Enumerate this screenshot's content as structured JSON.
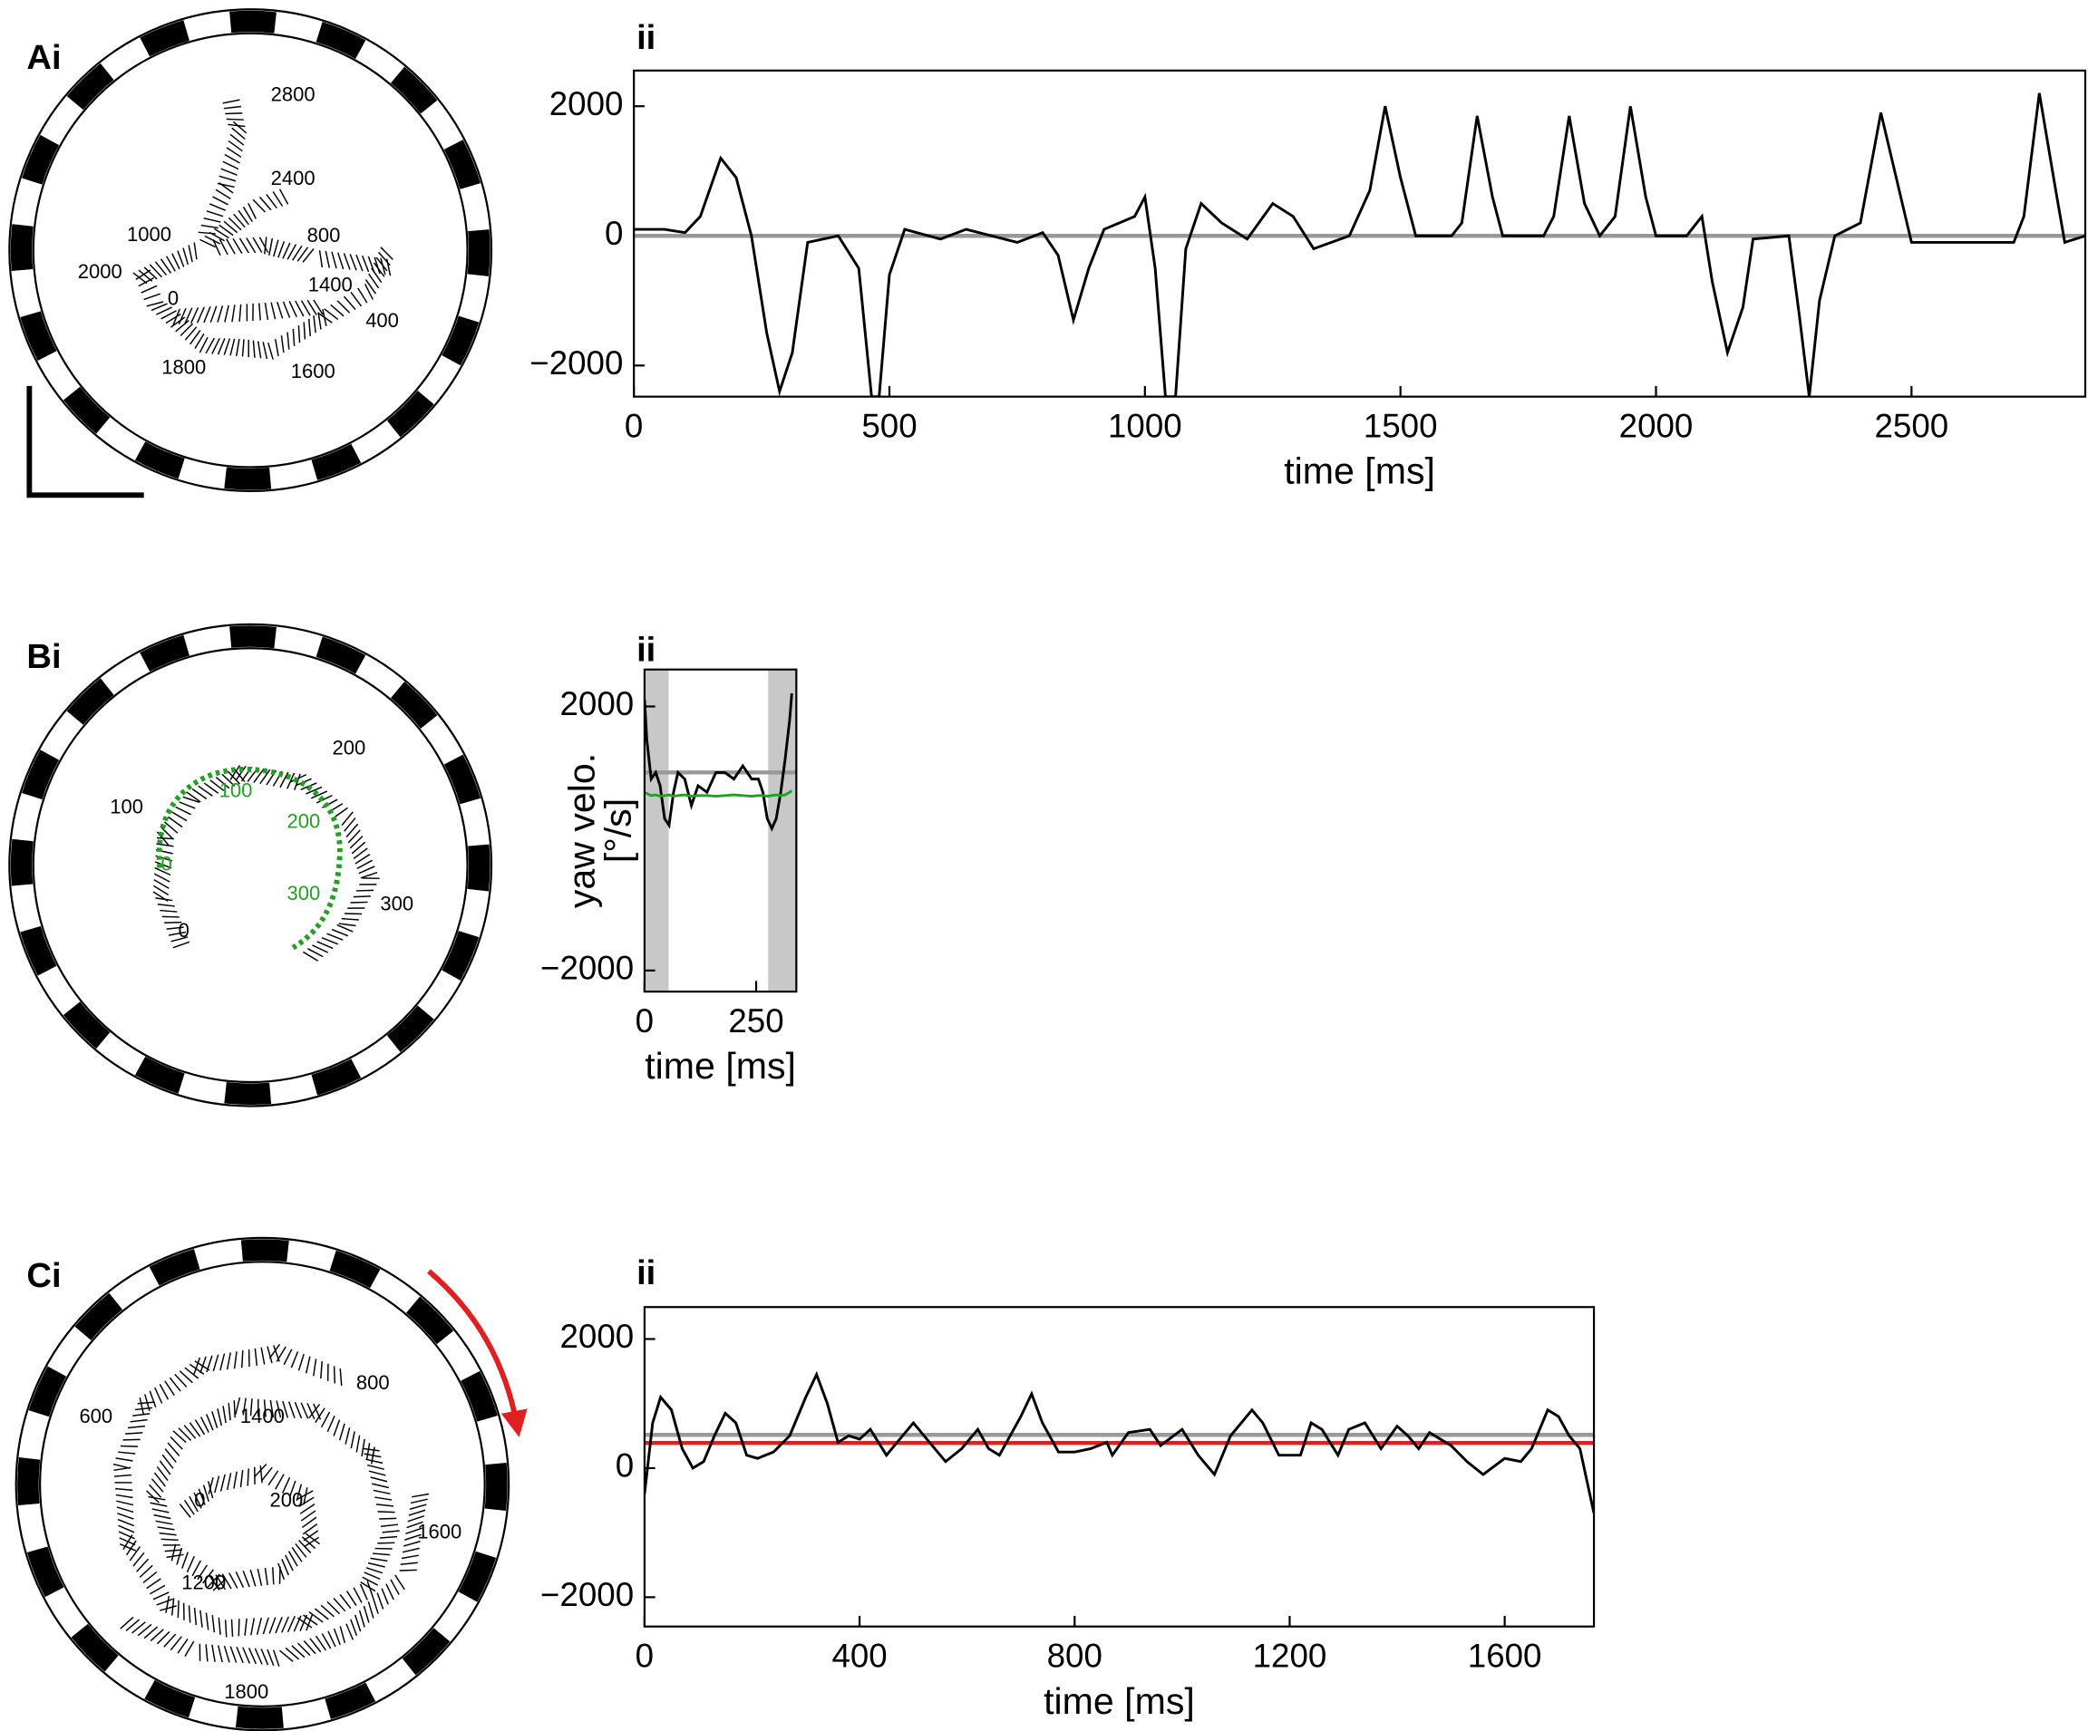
{
  "chart_data": [
    {
      "type": "arena",
      "panel_label": "Ai",
      "label_sets": [
        {
          "color": "#000000",
          "labels": [
            2800,
            2400,
            1000,
            800,
            2000,
            0,
            1400,
            400,
            1800,
            1600
          ]
        }
      ]
    },
    {
      "type": "line",
      "panel_label": "ii",
      "xlabel": "time [ms]",
      "xlim": [
        0,
        2840
      ],
      "ylim": [
        -2480,
        2550
      ],
      "xticks": [
        0,
        500,
        1000,
        1500,
        2000,
        2500
      ],
      "yticks": [
        {
          "value": -2000,
          "label": "−2000"
        },
        0,
        2000
      ],
      "reference_lines": [
        {
          "value": 0,
          "color": "#999999"
        }
      ],
      "x": [
        0,
        60,
        100,
        130,
        170,
        200,
        230,
        260,
        285,
        310,
        340,
        400,
        440,
        465,
        480,
        500,
        530,
        600,
        650,
        700,
        750,
        800,
        830,
        860,
        890,
        920,
        980,
        1000,
        1020,
        1040,
        1060,
        1080,
        1110,
        1150,
        1200,
        1250,
        1290,
        1330,
        1400,
        1440,
        1470,
        1500,
        1530,
        1600,
        1620,
        1650,
        1680,
        1700,
        1780,
        1800,
        1830,
        1860,
        1890,
        1920,
        1950,
        1980,
        2000,
        2060,
        2090,
        2110,
        2140,
        2170,
        2190,
        2260,
        2280,
        2300,
        2320,
        2350,
        2400,
        2440,
        2470,
        2500,
        2600,
        2700,
        2720,
        2750,
        2780,
        2800,
        2840
      ],
      "series": [
        {
          "color": "#000000",
          "values": [
            100,
            100,
            50,
            300,
            1200,
            900,
            0,
            -1500,
            -2400,
            -1800,
            -100,
            0,
            -500,
            -2480,
            -2480,
            -600,
            100,
            -50,
            100,
            0,
            -100,
            50,
            -300,
            -1300,
            -500,
            100,
            300,
            600,
            -500,
            -2480,
            -2480,
            -200,
            500,
            200,
            -50,
            500,
            300,
            -200,
            0,
            700,
            2000,
            900,
            0,
            0,
            200,
            1850,
            600,
            0,
            0,
            300,
            1850,
            500,
            0,
            300,
            2000,
            600,
            0,
            0,
            300,
            -700,
            -1800,
            -1100,
            -50,
            0,
            -1200,
            -2480,
            -1000,
            0,
            200,
            1900,
            900,
            -100,
            -100,
            -100,
            300,
            2200,
            800,
            -100,
            0
          ]
        }
      ]
    },
    {
      "type": "arena",
      "panel_label": "Bi",
      "label_sets": [
        {
          "color": "#000000",
          "labels": [
            200,
            100,
            300,
            0
          ]
        },
        {
          "color": "#22a022",
          "labels": [
            100,
            200,
            0,
            300
          ]
        }
      ]
    },
    {
      "type": "line",
      "panel_label": "ii",
      "xlabel": "time [ms]",
      "ylabel": [
        "yaw velo.",
        "[°/s]"
      ],
      "xlim": [
        0,
        340
      ],
      "ylim": [
        -2320,
        2560
      ],
      "xticks": [
        0,
        250
      ],
      "yticks": [
        {
          "value": -2000,
          "label": "−2000"
        },
        2000
      ],
      "shaded": [
        [
          0,
          54
        ],
        [
          277,
          340
        ]
      ],
      "shade_color": "#c8c8c8",
      "reference_lines": [
        {
          "value": 1000,
          "color": "#999999"
        }
      ],
      "x": [
        0,
        5,
        15,
        25,
        35,
        45,
        55,
        65,
        75,
        90,
        105,
        120,
        140,
        160,
        180,
        200,
        220,
        240,
        255,
        265,
        275,
        285,
        295,
        305,
        315,
        325,
        330
      ],
      "series": [
        {
          "color": "#000000",
          "values": [
            2100,
            1500,
            900,
            1000,
            800,
            300,
            200,
            700,
            1000,
            900,
            500,
            800,
            700,
            1000,
            1000,
            900,
            1100,
            900,
            900,
            700,
            300,
            150,
            300,
            700,
            1200,
            1800,
            2200
          ]
        },
        {
          "color": "#22a022",
          "values": [
            700,
            680,
            650,
            660,
            640,
            650,
            660,
            640,
            650,
            660,
            640,
            650,
            650,
            640,
            650,
            660,
            650,
            640,
            650,
            650,
            640,
            650,
            660,
            650,
            660,
            700,
            720
          ]
        }
      ]
    },
    {
      "type": "arena",
      "panel_label": "Ci",
      "arrow_color": "#e02020",
      "label_sets": [
        {
          "color": "#000000",
          "labels": [
            800,
            600,
            1400,
            0,
            200,
            1600,
            1200,
            1800
          ]
        }
      ]
    },
    {
      "type": "line",
      "panel_label": "ii",
      "xlabel": "time [ms]",
      "xlim": [
        0,
        1766
      ],
      "ylim": [
        -2454,
        2495
      ],
      "xticks": [
        0,
        400,
        800,
        1200,
        1600
      ],
      "yticks": [
        {
          "value": -2000,
          "label": "−2000"
        },
        0,
        2000
      ],
      "reference_lines": [
        {
          "value": 515,
          "color": "#999999"
        },
        {
          "value": 390,
          "color": "#e02020"
        }
      ],
      "x": [
        0,
        15,
        30,
        50,
        70,
        90,
        110,
        130,
        150,
        170,
        190,
        210,
        240,
        270,
        300,
        320,
        340,
        360,
        380,
        400,
        420,
        450,
        480,
        500,
        520,
        560,
        590,
        620,
        640,
        660,
        700,
        720,
        740,
        770,
        800,
        830,
        860,
        870,
        900,
        940,
        960,
        1000,
        1030,
        1060,
        1090,
        1130,
        1150,
        1180,
        1220,
        1240,
        1260,
        1290,
        1310,
        1340,
        1370,
        1400,
        1420,
        1440,
        1460,
        1500,
        1530,
        1560,
        1600,
        1630,
        1650,
        1680,
        1700,
        1720,
        1740,
        1766
      ],
      "series": [
        {
          "color": "#000000",
          "values": [
            -400,
            700,
            1100,
            900,
            300,
            0,
            100,
            500,
            850,
            700,
            200,
            150,
            250,
            500,
            1100,
            1450,
            1000,
            400,
            500,
            450,
            600,
            200,
            500,
            700,
            500,
            100,
            300,
            600,
            300,
            200,
            800,
            1150,
            700,
            250,
            250,
            300,
            400,
            200,
            550,
            600,
            350,
            600,
            200,
            -100,
            500,
            900,
            700,
            200,
            200,
            700,
            600,
            200,
            600,
            700,
            300,
            650,
            500,
            300,
            550,
            350,
            100,
            -100,
            150,
            100,
            300,
            900,
            800,
            500,
            300,
            -700
          ]
        }
      ]
    }
  ]
}
